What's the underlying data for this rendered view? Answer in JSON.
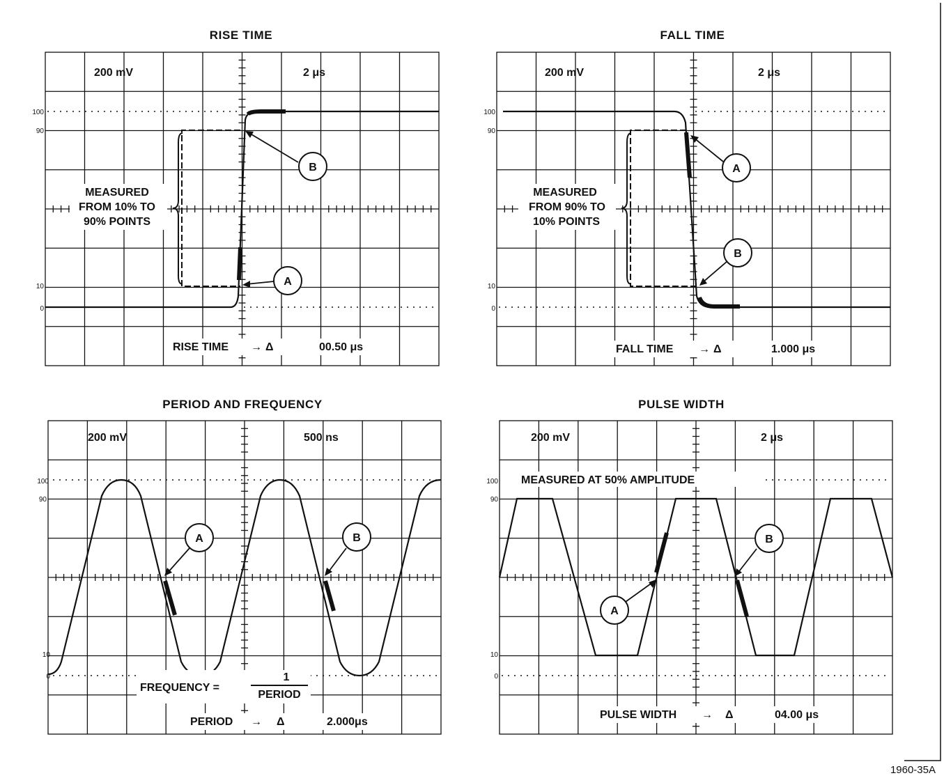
{
  "figure_id": "1960-35A",
  "panels": [
    {
      "title": "RISE TIME",
      "volts": "200 mV",
      "time": "2 μs",
      "readout_label": "RISE TIME",
      "readout_value": "00.50 μs",
      "note_lines": [
        "MEASURED",
        "FROM 10% TO",
        "90% POINTS"
      ]
    },
    {
      "title": "FALL TIME",
      "volts": "200 mV",
      "time": "2 μs",
      "readout_label": "FALL TIME",
      "readout_value": "1.000 μs",
      "note_lines": [
        "MEASURED",
        "FROM 90% TO",
        "10% POINTS"
      ]
    },
    {
      "title": "PERIOD AND FREQUENCY",
      "volts": "200 mV",
      "time": "500 ns",
      "readout_label": "PERIOD",
      "readout_value": "2.000μs",
      "frequency_label": "FREQUENCY =",
      "fraction_numerator": "1",
      "fraction_denominator": "PERIOD"
    },
    {
      "title": "PULSE WIDTH",
      "volts": "200 mV",
      "time": "2 μs",
      "readout_label": "PULSE WIDTH",
      "readout_value": "04.00 μs",
      "note": "MEASURED AT 50% AMPLITUDE"
    }
  ],
  "graticule_labels": {
    "l100": "100",
    "l90": "90",
    "l10": "10",
    "l0": "0"
  },
  "arrow_symbol": "→",
  "delta_symbol": "Δ",
  "markers": {
    "a": "A",
    "b": "B"
  }
}
